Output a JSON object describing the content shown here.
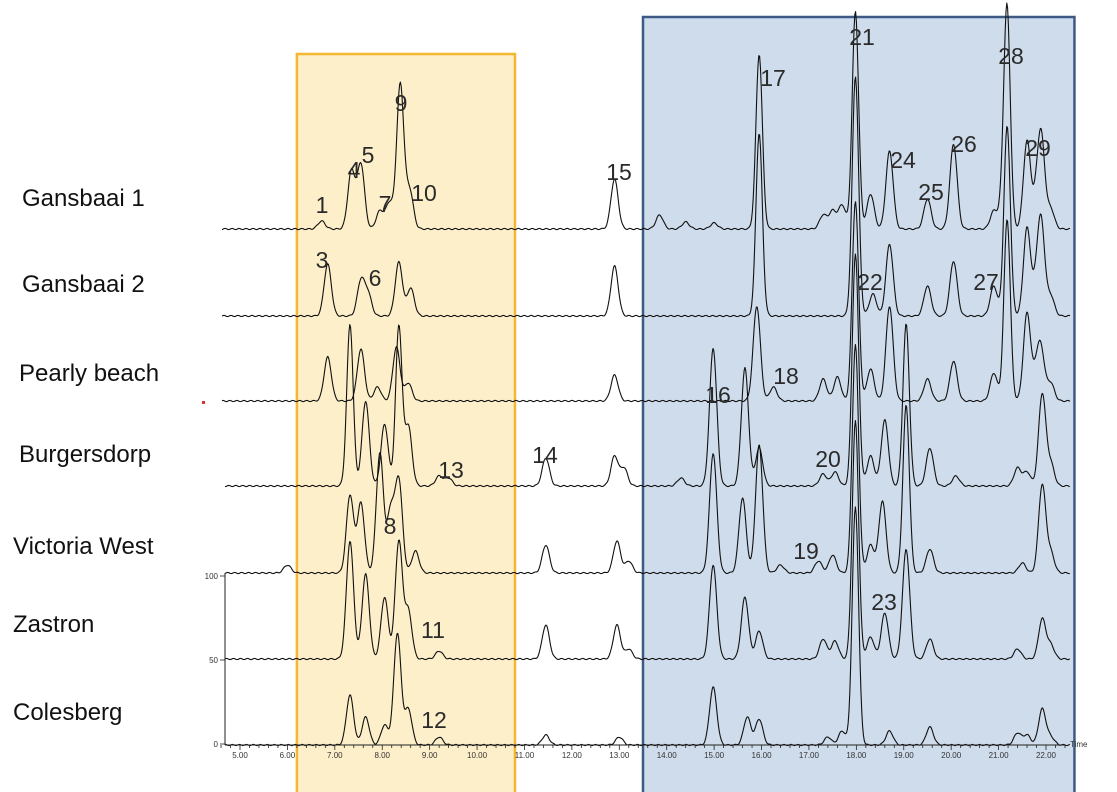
{
  "chart_data": {
    "type": "line",
    "title": "",
    "xlabel": "Time",
    "ylabel": "",
    "xlim": [
      4.6,
      22.4
    ],
    "x_ticks": [
      "5.00",
      "6.00",
      "7.00",
      "8.00",
      "9.00",
      "10.00",
      "11.00",
      "12.00",
      "13.00",
      "14.00",
      "15.00",
      "16.00",
      "17.00",
      "18.00",
      "19.00",
      "20.00",
      "21.00",
      "22.00"
    ],
    "y_ticks": [
      "100",
      "50",
      "0"
    ],
    "grid": false,
    "highlight_regions": [
      {
        "x_range": [
          6.2,
          10.8
        ],
        "fill": "#fdefc9",
        "stroke": "#f3b731"
      },
      {
        "x_range": [
          13.5,
          22.6
        ],
        "fill": "#cfdcec",
        "stroke": "#3e5a84"
      }
    ],
    "series": [
      {
        "name": "Gansbaai 1",
        "peaks": [
          {
            "x": 6.72,
            "h": 8
          },
          {
            "x": 7.35,
            "h": 58
          },
          {
            "x": 7.55,
            "h": 65
          },
          {
            "x": 7.95,
            "h": 18
          },
          {
            "x": 8.15,
            "h": 26
          },
          {
            "x": 8.38,
            "h": 145
          },
          {
            "x": 8.58,
            "h": 38
          },
          {
            "x": 12.9,
            "h": 50
          },
          {
            "x": 13.85,
            "h": 14
          },
          {
            "x": 14.4,
            "h": 7
          },
          {
            "x": 15.0,
            "h": 6
          },
          {
            "x": 15.95,
            "h": 175
          },
          {
            "x": 17.3,
            "h": 14
          },
          {
            "x": 17.5,
            "h": 18
          },
          {
            "x": 17.7,
            "h": 24
          },
          {
            "x": 17.98,
            "h": 218
          },
          {
            "x": 18.3,
            "h": 35
          },
          {
            "x": 18.7,
            "h": 78
          },
          {
            "x": 19.5,
            "h": 30
          },
          {
            "x": 20.05,
            "h": 85
          },
          {
            "x": 20.9,
            "h": 18
          },
          {
            "x": 21.1,
            "h": 26
          },
          {
            "x": 21.18,
            "h": 210
          },
          {
            "x": 21.6,
            "h": 88
          },
          {
            "x": 21.8,
            "h": 26
          },
          {
            "x": 21.9,
            "h": 88
          },
          {
            "x": 22.1,
            "h": 20
          }
        ]
      },
      {
        "name": "Gansbaai 2",
        "peaks": [
          {
            "x": 6.85,
            "h": 52
          },
          {
            "x": 7.55,
            "h": 35
          },
          {
            "x": 7.7,
            "h": 22
          },
          {
            "x": 8.35,
            "h": 54
          },
          {
            "x": 8.6,
            "h": 28
          },
          {
            "x": 12.9,
            "h": 50
          },
          {
            "x": 15.95,
            "h": 183
          },
          {
            "x": 17.98,
            "h": 240
          },
          {
            "x": 18.35,
            "h": 22
          },
          {
            "x": 18.7,
            "h": 72
          },
          {
            "x": 19.5,
            "h": 30
          },
          {
            "x": 20.05,
            "h": 55
          },
          {
            "x": 20.9,
            "h": 30
          },
          {
            "x": 21.18,
            "h": 190
          },
          {
            "x": 21.6,
            "h": 88
          },
          {
            "x": 21.8,
            "h": 28
          },
          {
            "x": 21.9,
            "h": 88
          },
          {
            "x": 22.1,
            "h": 20
          }
        ]
      },
      {
        "name": "Pearly beach",
        "peaks": [
          {
            "x": 6.85,
            "h": 44
          },
          {
            "x": 7.55,
            "h": 52
          },
          {
            "x": 7.9,
            "h": 14
          },
          {
            "x": 8.3,
            "h": 54
          },
          {
            "x": 8.55,
            "h": 18
          },
          {
            "x": 12.9,
            "h": 26
          },
          {
            "x": 15.9,
            "h": 95
          },
          {
            "x": 16.25,
            "h": 14
          },
          {
            "x": 17.3,
            "h": 22
          },
          {
            "x": 17.6,
            "h": 24
          },
          {
            "x": 17.98,
            "h": 200
          },
          {
            "x": 18.3,
            "h": 32
          },
          {
            "x": 18.7,
            "h": 95
          },
          {
            "x": 19.5,
            "h": 22
          },
          {
            "x": 20.05,
            "h": 40
          },
          {
            "x": 20.9,
            "h": 28
          },
          {
            "x": 21.18,
            "h": 182
          },
          {
            "x": 21.6,
            "h": 88
          },
          {
            "x": 21.8,
            "h": 28
          },
          {
            "x": 21.9,
            "h": 45
          },
          {
            "x": 22.1,
            "h": 18
          }
        ]
      },
      {
        "name": "Burgersdorp",
        "peaks": [
          {
            "x": 7.32,
            "h": 162
          },
          {
            "x": 7.65,
            "h": 85
          },
          {
            "x": 8.05,
            "h": 62
          },
          {
            "x": 8.35,
            "h": 160
          },
          {
            "x": 8.55,
            "h": 60
          },
          {
            "x": 9.2,
            "h": 10
          },
          {
            "x": 9.4,
            "h": 8
          },
          {
            "x": 11.45,
            "h": 28
          },
          {
            "x": 12.9,
            "h": 30
          },
          {
            "x": 13.1,
            "h": 18
          },
          {
            "x": 14.3,
            "h": 8
          },
          {
            "x": 14.98,
            "h": 138
          },
          {
            "x": 15.65,
            "h": 118
          },
          {
            "x": 15.95,
            "h": 38
          },
          {
            "x": 17.3,
            "h": 12
          },
          {
            "x": 17.55,
            "h": 14
          },
          {
            "x": 17.98,
            "h": 232
          },
          {
            "x": 18.3,
            "h": 30
          },
          {
            "x": 18.6,
            "h": 66
          },
          {
            "x": 19.05,
            "h": 162
          },
          {
            "x": 19.55,
            "h": 38
          },
          {
            "x": 20.1,
            "h": 10
          },
          {
            "x": 21.4,
            "h": 18
          },
          {
            "x": 21.6,
            "h": 14
          },
          {
            "x": 21.92,
            "h": 92
          },
          {
            "x": 22.1,
            "h": 22
          }
        ]
      },
      {
        "name": "Victoria West",
        "peaks": [
          {
            "x": 6.0,
            "h": 8
          },
          {
            "x": 7.32,
            "h": 78
          },
          {
            "x": 7.55,
            "h": 70
          },
          {
            "x": 7.95,
            "h": 120
          },
          {
            "x": 8.18,
            "h": 62
          },
          {
            "x": 8.35,
            "h": 92
          },
          {
            "x": 8.7,
            "h": 22
          },
          {
            "x": 11.45,
            "h": 28
          },
          {
            "x": 12.95,
            "h": 32
          },
          {
            "x": 13.2,
            "h": 12
          },
          {
            "x": 14.98,
            "h": 120
          },
          {
            "x": 15.6,
            "h": 75
          },
          {
            "x": 15.95,
            "h": 128
          },
          {
            "x": 16.4,
            "h": 8
          },
          {
            "x": 17.2,
            "h": 12
          },
          {
            "x": 17.5,
            "h": 18
          },
          {
            "x": 17.98,
            "h": 228
          },
          {
            "x": 18.3,
            "h": 28
          },
          {
            "x": 18.55,
            "h": 72
          },
          {
            "x": 19.05,
            "h": 168
          },
          {
            "x": 19.55,
            "h": 24
          },
          {
            "x": 21.5,
            "h": 10
          },
          {
            "x": 21.92,
            "h": 88
          },
          {
            "x": 22.1,
            "h": 20
          }
        ]
      },
      {
        "name": "Zastron",
        "peaks": [
          {
            "x": 7.32,
            "h": 118
          },
          {
            "x": 7.65,
            "h": 85
          },
          {
            "x": 8.05,
            "h": 62
          },
          {
            "x": 8.35,
            "h": 118
          },
          {
            "x": 8.55,
            "h": 48
          },
          {
            "x": 9.2,
            "h": 8
          },
          {
            "x": 11.45,
            "h": 34
          },
          {
            "x": 12.95,
            "h": 34
          },
          {
            "x": 13.2,
            "h": 10
          },
          {
            "x": 14.98,
            "h": 94
          },
          {
            "x": 15.65,
            "h": 62
          },
          {
            "x": 15.95,
            "h": 28
          },
          {
            "x": 17.3,
            "h": 20
          },
          {
            "x": 17.55,
            "h": 18
          },
          {
            "x": 17.98,
            "h": 238
          },
          {
            "x": 18.3,
            "h": 22
          },
          {
            "x": 18.6,
            "h": 46
          },
          {
            "x": 19.05,
            "h": 110
          },
          {
            "x": 19.55,
            "h": 20
          },
          {
            "x": 21.4,
            "h": 10
          },
          {
            "x": 21.92,
            "h": 40
          },
          {
            "x": 22.1,
            "h": 14
          }
        ]
      },
      {
        "name": "Colesberg",
        "peaks": [
          {
            "x": 7.32,
            "h": 50
          },
          {
            "x": 7.65,
            "h": 28
          },
          {
            "x": 8.05,
            "h": 20
          },
          {
            "x": 8.32,
            "h": 112
          },
          {
            "x": 8.55,
            "h": 36
          },
          {
            "x": 9.2,
            "h": 8
          },
          {
            "x": 11.45,
            "h": 10
          },
          {
            "x": 13.0,
            "h": 8
          },
          {
            "x": 14.98,
            "h": 58
          },
          {
            "x": 15.7,
            "h": 28
          },
          {
            "x": 15.95,
            "h": 26
          },
          {
            "x": 17.4,
            "h": 8
          },
          {
            "x": 17.7,
            "h": 14
          },
          {
            "x": 17.98,
            "h": 238
          },
          {
            "x": 18.7,
            "h": 14
          },
          {
            "x": 19.55,
            "h": 18
          },
          {
            "x": 21.4,
            "h": 12
          },
          {
            "x": 21.6,
            "h": 10
          },
          {
            "x": 21.92,
            "h": 36
          },
          {
            "x": 22.1,
            "h": 8
          }
        ]
      }
    ],
    "annotations": [
      {
        "text": "1",
        "series": "Gansbaai 1",
        "x": 6.72
      },
      {
        "text": "4",
        "series": "Gansbaai 1",
        "x": 7.35
      },
      {
        "text": "5",
        "series": "Gansbaai 1",
        "x": 7.55
      },
      {
        "text": "7",
        "series": "Gansbaai 1",
        "x": 8.05
      },
      {
        "text": "9",
        "series": "Gansbaai 1",
        "x": 8.38
      },
      {
        "text": "10",
        "series": "Gansbaai 1",
        "x": 8.8
      },
      {
        "text": "15",
        "series": "Gansbaai 1",
        "x": 12.9
      },
      {
        "text": "17",
        "series": "Gansbaai 1",
        "x": 15.95
      },
      {
        "text": "21",
        "series": "Gansbaai 1",
        "x": 17.98
      },
      {
        "text": "24",
        "series": "Gansbaai 1",
        "x": 18.95
      },
      {
        "text": "25",
        "series": "Gansbaai 1",
        "x": 19.55
      },
      {
        "text": "26",
        "series": "Gansbaai 1",
        "x": 20.25
      },
      {
        "text": "28",
        "series": "Gansbaai 1",
        "x": 21.18
      },
      {
        "text": "29",
        "series": "Gansbaai 1",
        "x": 21.8
      },
      {
        "text": "3",
        "series": "Gansbaai 2",
        "x": 6.85
      },
      {
        "text": "6",
        "series": "Gansbaai 2",
        "x": 7.8
      },
      {
        "text": "22",
        "series": "Gansbaai 2",
        "x": 18.4
      },
      {
        "text": "27",
        "series": "Gansbaai 2",
        "x": 20.7
      },
      {
        "text": "18",
        "series": "Pearly beach",
        "x": 16.45
      },
      {
        "text": "16",
        "series": "Burgersdorp",
        "x": 14.98
      },
      {
        "text": "13",
        "series": "Burgersdorp",
        "x": 9.4
      },
      {
        "text": "14",
        "series": "Burgersdorp",
        "x": 11.45
      },
      {
        "text": "20",
        "series": "Burgersdorp",
        "x": 17.4
      },
      {
        "text": "8",
        "series": "Victoria West",
        "x": 8.1
      },
      {
        "text": "19",
        "series": "Victoria West",
        "x": 16.85
      },
      {
        "text": "23",
        "series": "Zastron",
        "x": 18.6
      },
      {
        "text": "11",
        "series": "Zastron",
        "x": 9.1
      },
      {
        "text": "12",
        "series": "Colesberg",
        "x": 9.15
      }
    ]
  }
}
